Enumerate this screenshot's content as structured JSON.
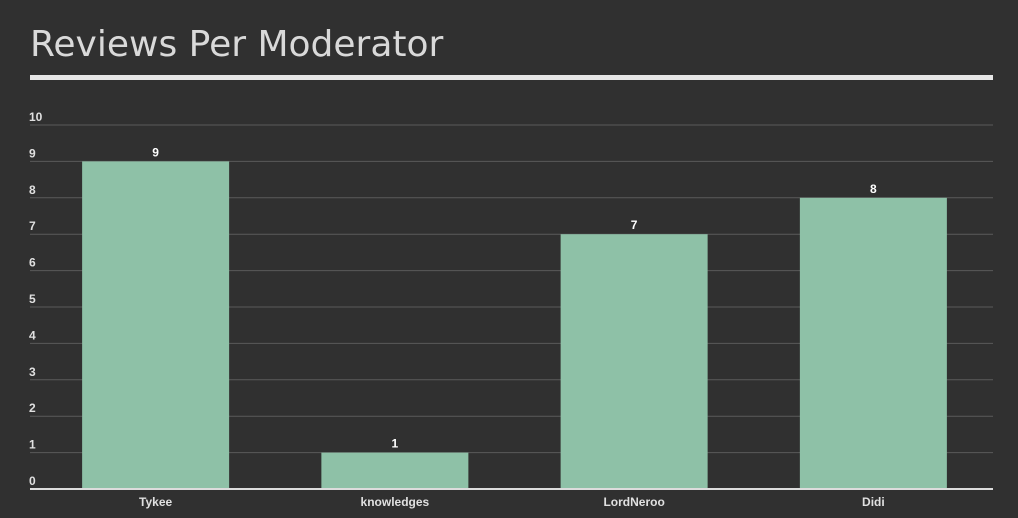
{
  "colors": {
    "background": "#303030",
    "bar": "#8ec1a7",
    "title": "#d9d9d9",
    "rule": "#e6e6e6",
    "grid": "#5a5a5a"
  },
  "chart_data": {
    "type": "bar",
    "title": "Reviews Per Moderator",
    "categories": [
      "Tykee",
      "knowledges",
      "LordNeroo",
      "Didi"
    ],
    "values": [
      9,
      1,
      7,
      8
    ],
    "ylim": [
      0,
      10
    ],
    "yticks": [
      0,
      1,
      2,
      3,
      4,
      5,
      6,
      7,
      8,
      9,
      10
    ],
    "grid": true,
    "data_labels": true,
    "xlabel": "",
    "ylabel": ""
  }
}
